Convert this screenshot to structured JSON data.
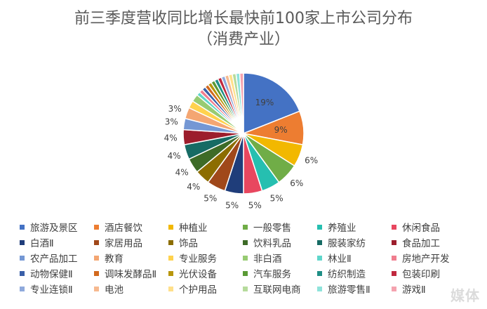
{
  "chart_data": {
    "type": "pie",
    "title": "前三季度营收同比增长最快前100家上市公司分布",
    "subtitle": "（消费产业）",
    "slices": [
      {
        "name": "旅游及景区",
        "value": 19,
        "label": "19%",
        "color": "#4472C4"
      },
      {
        "name": "酒店餐饮",
        "value": 9,
        "label": "9%",
        "color": "#ED7D31"
      },
      {
        "name": "种植业",
        "value": 6,
        "label": "6%",
        "color": "#F2B800"
      },
      {
        "name": "一般零售",
        "value": 6,
        "label": "6%",
        "color": "#70AD47"
      },
      {
        "name": "养殖业",
        "value": 5,
        "label": "5%",
        "color": "#26BFB0"
      },
      {
        "name": "休闲食品",
        "value": 5,
        "label": "5%",
        "color": "#E8475F"
      },
      {
        "name": "白酒Ⅱ",
        "value": 5,
        "label": "5%",
        "color": "#1F3D7A"
      },
      {
        "name": "家居用品",
        "value": 5,
        "label": "5%",
        "color": "#A0481A"
      },
      {
        "name": "饰品",
        "value": 4,
        "label": "4%",
        "color": "#8C6D00"
      },
      {
        "name": "饮料乳品",
        "value": 4,
        "label": "4%",
        "color": "#3D6B27"
      },
      {
        "name": "服装家纺",
        "value": 4,
        "label": "4%",
        "color": "#166B64"
      },
      {
        "name": "食品加工",
        "value": 4,
        "label": "4%",
        "color": "#9C1D2C"
      },
      {
        "name": "农产品加工",
        "value": 3,
        "label": "3%",
        "color": "#7497D4"
      },
      {
        "name": "教育",
        "value": 3,
        "label": "3%",
        "color": "#F4A672"
      },
      {
        "name": "专业服务",
        "value": 2,
        "label": "",
        "color": "#FFD24D"
      },
      {
        "name": "非白酒",
        "value": 2,
        "label": "",
        "color": "#97CB72"
      },
      {
        "name": "林业Ⅱ",
        "value": 1,
        "label": "",
        "color": "#5FD6CB"
      },
      {
        "name": "房地产开发",
        "value": 1,
        "label": "",
        "color": "#F07D8E"
      },
      {
        "name": "动物保健Ⅱ",
        "value": 1,
        "label": "",
        "color": "#3A5FA8"
      },
      {
        "name": "调味发酵品Ⅱ",
        "value": 1,
        "label": "",
        "color": "#D2691E"
      },
      {
        "name": "光伏设备",
        "value": 1,
        "label": "",
        "color": "#B8960C"
      },
      {
        "name": "汽车服务",
        "value": 1,
        "label": "",
        "color": "#5A9A35"
      },
      {
        "name": "纺织制造",
        "value": 1,
        "label": "",
        "color": "#1F8F86"
      },
      {
        "name": "包装印刷",
        "value": 1,
        "label": "",
        "color": "#C0283E"
      },
      {
        "name": "专业连锁Ⅱ",
        "value": 1,
        "label": "",
        "color": "#8FA9DC"
      },
      {
        "name": "电池",
        "value": 1,
        "label": "",
        "color": "#F6B98F"
      },
      {
        "name": "个护用品",
        "value": 1,
        "label": "",
        "color": "#FFE08A"
      },
      {
        "name": "互联网电商",
        "value": 1,
        "label": "",
        "color": "#B6DB9C"
      },
      {
        "name": "旅游零售Ⅱ",
        "value": 1,
        "label": "",
        "color": "#8FE3DB"
      },
      {
        "name": "游戏Ⅱ",
        "value": 1,
        "label": "",
        "color": "#F5A3AF"
      }
    ]
  },
  "watermark": "媒体"
}
